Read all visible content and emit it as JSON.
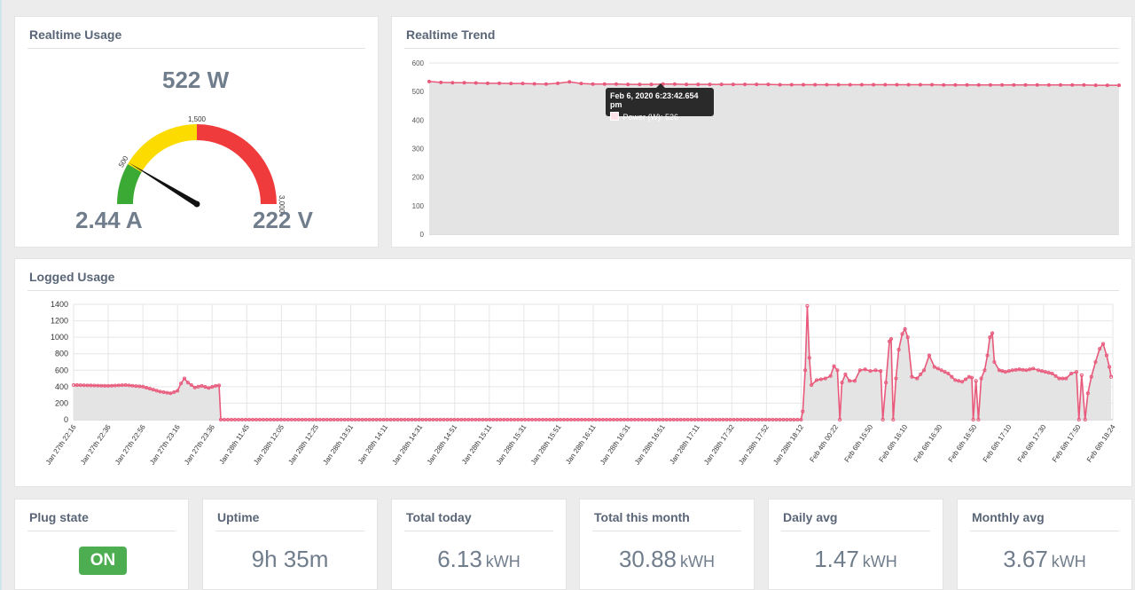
{
  "realtime_usage": {
    "title": "Realtime Usage",
    "power": "522 W",
    "current": "2.44 A",
    "voltage": "222 V",
    "gauge": {
      "min": 0,
      "max": 3000,
      "value": 522,
      "ticks": [
        "500",
        "1,500",
        "3,000"
      ],
      "zones": [
        {
          "from": 0,
          "to": 500,
          "color": "#3aaa35"
        },
        {
          "from": 500,
          "to": 1500,
          "color": "#fbdb00"
        },
        {
          "from": 1500,
          "to": 3000,
          "color": "#ef3b3b"
        }
      ]
    }
  },
  "realtime_trend": {
    "title": "Realtime Trend",
    "tooltip": {
      "time": "Feb 6, 2020 6:23:42.654 pm",
      "series": "Power (W): 526"
    },
    "chart_data": {
      "type": "area",
      "ylim": [
        0,
        600
      ],
      "yticks": [
        "0",
        "100",
        "200",
        "300",
        "400",
        "500",
        "600"
      ],
      "values": [
        535,
        532,
        531,
        531,
        530,
        529,
        529,
        528,
        528,
        527,
        526,
        529,
        534,
        528,
        526,
        526,
        526,
        525,
        525,
        525,
        526,
        526,
        525,
        525,
        525,
        525,
        525,
        525,
        525,
        525,
        524,
        524,
        524,
        524,
        524,
        524,
        524,
        524,
        524,
        524,
        524,
        524,
        524,
        524,
        523,
        523,
        523,
        523,
        523,
        523,
        523,
        523,
        523,
        523,
        523,
        523,
        523,
        522,
        522,
        522
      ],
      "color": "#e8597b"
    }
  },
  "logged_usage": {
    "title": "Logged Usage",
    "chart_data": {
      "type": "area",
      "ylim": [
        0,
        1400
      ],
      "yticks": [
        "0",
        "200",
        "400",
        "600",
        "800",
        "1000",
        "1200",
        "1400"
      ],
      "xticks": [
        "Jan 27th 22:16",
        "Jan 27th 22:36",
        "Jan 27th 22:56",
        "Jan 27th 23:16",
        "Jan 27th 23:36",
        "Jan 28th 11:45",
        "Jan 28th 12:05",
        "Jan 28th 12:25",
        "Jan 28th 13:51",
        "Jan 28th 14:11",
        "Jan 28th 14:31",
        "Jan 28th 14:51",
        "Jan 28th 15:11",
        "Jan 28th 15:31",
        "Jan 28th 15:51",
        "Jan 28th 16:11",
        "Jan 28th 16:31",
        "Jan 28th 16:51",
        "Jan 28th 17:11",
        "Jan 28th 17:32",
        "Jan 28th 17:52",
        "Jan 28th 18:12",
        "Feb 4th 00:22",
        "Feb 6th 15:50",
        "Feb 6th 16:10",
        "Feb 6th 16:30",
        "Feb 6th 16:50",
        "Feb 6th 17:10",
        "Feb 6th 17:30",
        "Feb 6th 17:50",
        "Feb 6th 18:24"
      ],
      "points": [
        [
          0,
          420
        ],
        [
          1,
          410
        ],
        [
          1.5,
          420
        ],
        [
          2,
          400
        ],
        [
          2.5,
          340
        ],
        [
          2.8,
          320
        ],
        [
          3,
          350
        ],
        [
          3.1,
          440
        ],
        [
          3.2,
          500
        ],
        [
          3.3,
          450
        ],
        [
          3.5,
          390
        ],
        [
          3.7,
          410
        ],
        [
          3.9,
          385
        ],
        [
          4.1,
          410
        ],
        [
          4.2,
          415
        ],
        [
          4.25,
          0
        ],
        [
          21.0,
          0
        ],
        [
          21.05,
          100
        ],
        [
          21.12,
          600
        ],
        [
          21.18,
          1380
        ],
        [
          21.24,
          750
        ],
        [
          21.3,
          420
        ],
        [
          21.45,
          480
        ],
        [
          21.7,
          500
        ],
        [
          21.85,
          530
        ],
        [
          21.95,
          650
        ],
        [
          22.05,
          600
        ],
        [
          22.12,
          0
        ],
        [
          22.18,
          450
        ],
        [
          22.28,
          550
        ],
        [
          22.4,
          470
        ],
        [
          22.55,
          470
        ],
        [
          22.7,
          600
        ],
        [
          22.85,
          610
        ],
        [
          23.0,
          590
        ],
        [
          23.15,
          600
        ],
        [
          23.3,
          590
        ],
        [
          23.36,
          0
        ],
        [
          23.45,
          450
        ],
        [
          23.55,
          950
        ],
        [
          23.6,
          980
        ],
        [
          23.66,
          0
        ],
        [
          23.74,
          500
        ],
        [
          23.82,
          850
        ],
        [
          23.92,
          1040
        ],
        [
          24.0,
          1100
        ],
        [
          24.08,
          1000
        ],
        [
          24.2,
          520
        ],
        [
          24.35,
          500
        ],
        [
          24.55,
          600
        ],
        [
          24.7,
          780
        ],
        [
          24.85,
          640
        ],
        [
          25.05,
          600
        ],
        [
          25.25,
          560
        ],
        [
          25.45,
          480
        ],
        [
          25.65,
          460
        ],
        [
          25.85,
          520
        ],
        [
          25.93,
          510
        ],
        [
          25.97,
          0
        ],
        [
          26.05,
          470
        ],
        [
          26.12,
          0
        ],
        [
          26.2,
          500
        ],
        [
          26.3,
          600
        ],
        [
          26.38,
          780
        ],
        [
          26.45,
          1000
        ],
        [
          26.52,
          1050
        ],
        [
          26.58,
          700
        ],
        [
          26.72,
          600
        ],
        [
          26.9,
          580
        ],
        [
          27.1,
          600
        ],
        [
          27.3,
          610
        ],
        [
          27.5,
          600
        ],
        [
          27.7,
          620
        ],
        [
          27.85,
          600
        ],
        [
          28.05,
          580
        ],
        [
          28.25,
          560
        ],
        [
          28.45,
          500
        ],
        [
          28.65,
          500
        ],
        [
          28.8,
          560
        ],
        [
          28.95,
          580
        ],
        [
          29.02,
          0
        ],
        [
          29.1,
          540
        ],
        [
          29.2,
          0
        ],
        [
          29.28,
          320
        ],
        [
          29.38,
          520
        ],
        [
          29.5,
          700
        ],
        [
          29.62,
          860
        ],
        [
          29.72,
          920
        ],
        [
          29.82,
          780
        ],
        [
          29.9,
          640
        ],
        [
          29.95,
          520
        ]
      ],
      "color": "#e8597b"
    }
  },
  "stats": {
    "plug_state": {
      "title": "Plug state",
      "value": "ON"
    },
    "uptime": {
      "title": "Uptime",
      "value": "9h 35m"
    },
    "total_today": {
      "title": "Total today",
      "value": "6.13",
      "unit": "kWH"
    },
    "total_month": {
      "title": "Total this month",
      "value": "30.88",
      "unit": "kWH"
    },
    "daily_avg": {
      "title": "Daily avg",
      "value": "1.47",
      "unit": "kWH"
    },
    "monthly_avg": {
      "title": "Monthly avg",
      "value": "3.67",
      "unit": "kWH"
    }
  }
}
